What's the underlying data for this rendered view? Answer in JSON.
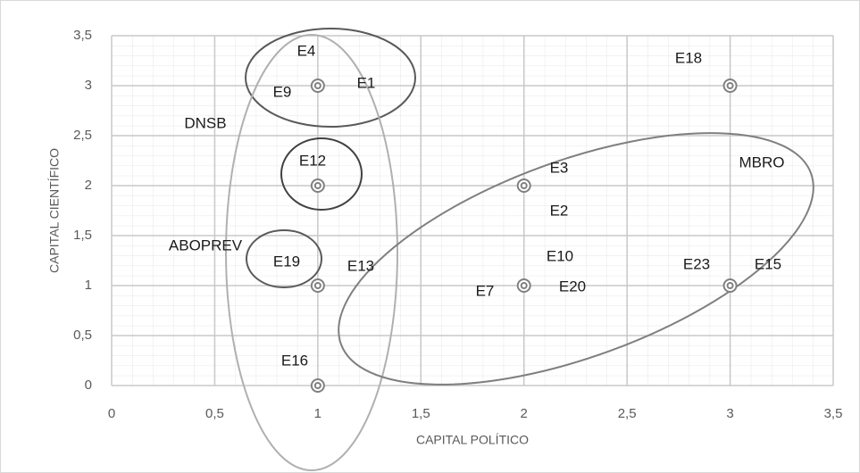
{
  "chart_data": {
    "type": "scatter",
    "x": [
      1,
      1,
      1,
      1,
      2,
      2,
      3,
      3
    ],
    "y": [
      3,
      2,
      1,
      0,
      2,
      1,
      3,
      1
    ],
    "color": "#808080",
    "xlabel": "CAPITAL POLÍTICO",
    "ylabel": "CAPITAL CIENTÍFICO",
    "xlim": [
      0,
      3.5
    ],
    "ylim": [
      0,
      3.5
    ],
    "xticks": [
      0,
      {
        "value": 0.5,
        "label": "0,5"
      },
      1,
      {
        "value": 1.5,
        "label": "1,5"
      },
      2,
      {
        "value": 2.5,
        "label": "2,5"
      },
      3,
      {
        "value": 3.5,
        "label": "3,5"
      }
    ],
    "yticks": [
      0,
      {
        "value": 0.5,
        "label": "0,5"
      },
      1,
      {
        "value": 1.5,
        "label": "1,5"
      },
      2,
      {
        "value": 2.5,
        "label": "2,5"
      },
      3,
      {
        "value": 3.5,
        "label": "3,5"
      }
    ],
    "grid": true,
    "annotations": [
      "E4",
      "E9",
      "E1",
      "E12",
      "E19",
      "E13",
      "E16",
      "E3",
      "E2",
      "E10",
      "E7",
      "E20",
      "E18",
      "E23",
      "E15",
      "DNSB",
      "ABOPREV",
      "MBRO"
    ]
  }
}
